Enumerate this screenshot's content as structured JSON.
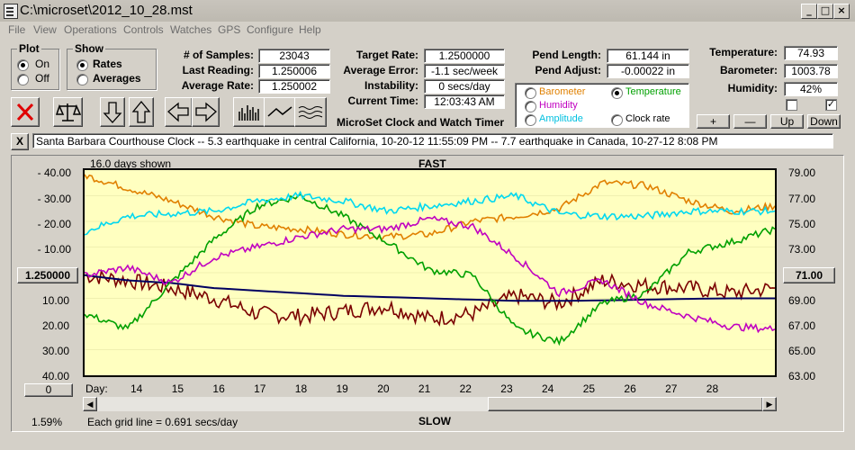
{
  "window": {
    "title": "C:\\microset\\2012_10_28.mst"
  },
  "menu": [
    "File",
    "View",
    "Operations",
    "Controls",
    "Watches",
    "GPS",
    "Configure",
    "Help"
  ],
  "plot_group": {
    "title": "Plot",
    "options": [
      "On",
      "Off"
    ],
    "selected": "On"
  },
  "show_group": {
    "title": "Show",
    "options": [
      "Rates",
      "Averages"
    ],
    "selected": "Rates"
  },
  "stats": {
    "samples_label": "# of Samples:",
    "samples": "23043",
    "last_label": "Last Reading:",
    "last": "1.250006",
    "avg_label": "Average Rate:",
    "avg": "1.250002"
  },
  "target": {
    "target_label": "Target Rate:",
    "target": "1.2500000",
    "error_label": "Average Error:",
    "error": "-1.1 sec/week",
    "instab_label": "Instability:",
    "instab": "0 secs/day",
    "time_label": "Current Time:",
    "time": "12:03:43 AM"
  },
  "app_title": "MicroSet Clock and Watch Timer",
  "pend": {
    "length_label": "Pend Length:",
    "length": "61.144 in",
    "adjust_label": "Pend Adjust:",
    "adjust": "-0.00022 in"
  },
  "aux_options": [
    {
      "label": "Barometer",
      "color": "#e08000",
      "selected": false
    },
    {
      "label": "Temperature",
      "color": "#00a000",
      "selected": true
    },
    {
      "label": "Humidity",
      "color": "#c000c0",
      "selected": false
    },
    {
      "label": "Clock rate",
      "color": "#000000",
      "selected": false
    },
    {
      "label": "Amplitude",
      "color": "#00c0e0",
      "selected": false
    }
  ],
  "env": {
    "temp_label": "Temperature:",
    "temp": "74.93",
    "baro_label": "Barometer:",
    "baro": "1003.78",
    "hum_label": "Humidity:",
    "hum": "42%"
  },
  "checkboxes": [
    false,
    true
  ],
  "scale_buttons": [
    "+",
    "—",
    "Up",
    "Down"
  ],
  "toolbar_icons": [
    "clear-icon",
    "balance-icon",
    "arrow-down-icon",
    "arrow-up-icon",
    "arrow-left-icon",
    "arrow-right-icon",
    "bar-graph-icon",
    "line-graph-icon",
    "wave-graph-icon"
  ],
  "notes": {
    "close": "X",
    "text": "Santa Barbara Courthouse Clock  --  5.3 earthquake in central California, 10-20-12 11:55:09 PM  --  7.7 earthquake in Canada, 10-27-12 8:08 PM"
  },
  "graph": {
    "days_shown": "16.0 days shown",
    "top_label": "FAST",
    "bottom_label": "SLOW",
    "left_ticks": [
      "-  40.00",
      "-  30.00",
      "-  20.00",
      "-  10.00",
      "10.00",
      "20.00",
      "30.00",
      "40.00"
    ],
    "center_value": "1.250000",
    "right_ticks": [
      "79.00",
      "77.00",
      "75.00",
      "73.00",
      "69.00",
      "67.00",
      "65.00",
      "63.00"
    ],
    "right_center": "71.00",
    "offset_value": "0",
    "day_label": "Day:",
    "days": [
      "14",
      "15",
      "16",
      "17",
      "18",
      "19",
      "20",
      "21",
      "22",
      "23",
      "24",
      "25",
      "26",
      "27",
      "28"
    ],
    "grid_note": "Each grid line = 0.691 secs/day",
    "percent": "1.59%"
  },
  "chart_data": {
    "type": "line",
    "x": [
      13,
      14,
      15,
      16,
      17,
      18,
      19,
      20,
      21,
      22,
      23,
      24,
      25,
      26,
      27,
      28,
      29
    ],
    "xlabel": "Day:",
    "ylabel_left": "secs/day",
    "ylabel_right": "Temperature",
    "y_right_range": [
      63,
      79
    ],
    "y_left_range": [
      -40,
      40
    ],
    "series": [
      {
        "name": "Clock rate",
        "color": "#7a0000",
        "values": [
          -1,
          -3,
          -6,
          -10,
          -16,
          -17,
          -15,
          -13,
          -18,
          -16,
          -9,
          -12,
          -3,
          -5,
          -6,
          -8,
          -6
        ]
      },
      {
        "name": "Average rate",
        "color": "#000060",
        "values": [
          -1,
          -3,
          -4,
          -6,
          -7,
          -8,
          -9,
          -9.5,
          -10,
          -10.5,
          -11,
          -11,
          -10.8,
          -10.5,
          -10.2,
          -10,
          -10
        ]
      },
      {
        "name": "Barometer",
        "color": "#e08000",
        "values": [
          38,
          33,
          28,
          22,
          18,
          17,
          15,
          14,
          15,
          20,
          22,
          25,
          35,
          34,
          28,
          24,
          26
        ]
      },
      {
        "name": "Temperature",
        "color": "#00a000",
        "values": [
          -16,
          -22,
          -4,
          13,
          26,
          30,
          22,
          12,
          1,
          -1,
          -22,
          -27,
          -12,
          -8,
          8,
          12,
          17
        ]
      },
      {
        "name": "Humidity",
        "color": "#c000c0",
        "values": [
          -1,
          2,
          -4,
          6,
          10,
          14,
          17,
          17,
          21,
          18,
          6,
          -8,
          -3,
          -12,
          -17,
          -21,
          -22
        ]
      },
      {
        "name": "Amplitude",
        "color": "#00d8f0",
        "values": [
          16,
          22,
          23,
          24,
          28,
          30,
          28,
          24,
          26,
          28,
          30,
          23,
          22,
          22,
          24,
          24,
          24
        ]
      }
    ]
  }
}
